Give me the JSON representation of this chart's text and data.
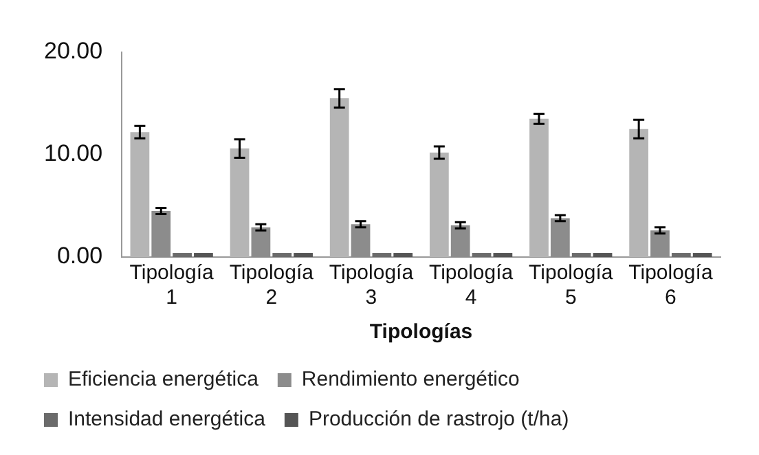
{
  "chart_data": {
    "type": "bar",
    "xlabel": "Tipologías",
    "categories": [
      "Tipología 1",
      "Tipología 2",
      "Tipología 3",
      "Tipología 4",
      "Tipología 5",
      "Tipología 6"
    ],
    "series": [
      {
        "name": "Eficiencia energética",
        "color": "#b5b5b5",
        "values": [
          12.2,
          10.6,
          15.5,
          10.2,
          13.5,
          12.5
        ],
        "errors": [
          0.6,
          0.9,
          0.9,
          0.6,
          0.5,
          0.9
        ]
      },
      {
        "name": "Rendimiento energético",
        "color": "#8c8c8c",
        "values": [
          4.5,
          2.9,
          3.2,
          3.1,
          3.8,
          2.6
        ],
        "errors": [
          0.3,
          0.3,
          0.3,
          0.3,
          0.3,
          0.3
        ]
      },
      {
        "name": "Intensidad energética",
        "color": "#6b6b6b",
        "values": [
          0.4,
          0.4,
          0.4,
          0.4,
          0.4,
          0.4
        ]
      },
      {
        "name": "Producción de rastrojo (t/ha)",
        "color": "#555555",
        "values": [
          0.4,
          0.4,
          0.4,
          0.4,
          0.4,
          0.4
        ]
      }
    ],
    "ylim": [
      0,
      20
    ],
    "yticks": [
      {
        "value": 0,
        "label": "0.00"
      },
      {
        "value": 10,
        "label": "10.00"
      },
      {
        "value": 20,
        "label": "20.00"
      }
    ],
    "grid": false,
    "legend": "bottom"
  }
}
